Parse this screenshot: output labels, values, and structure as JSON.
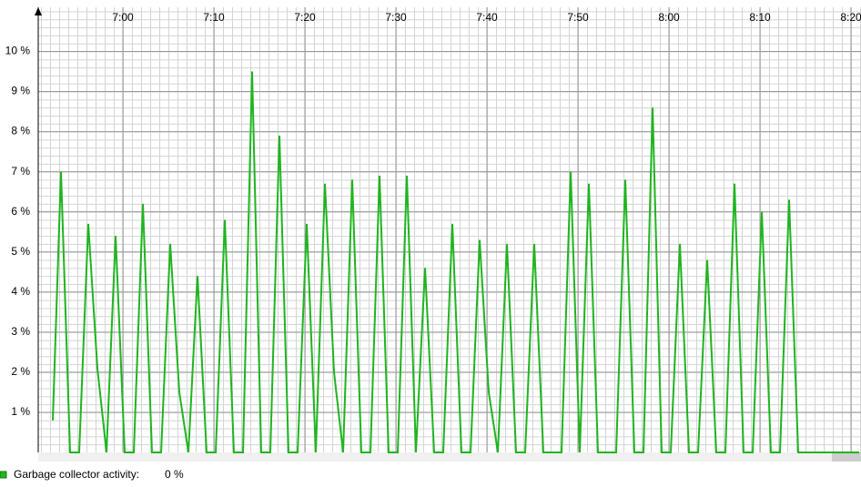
{
  "chart_data": {
    "type": "line",
    "xticks": [
      {
        "value": 420,
        "label": "7:00"
      },
      {
        "value": 430,
        "label": "7:10"
      },
      {
        "value": 440,
        "label": "7:20"
      },
      {
        "value": 450,
        "label": "7:30"
      },
      {
        "value": 460,
        "label": "7:40"
      },
      {
        "value": 470,
        "label": "7:50"
      },
      {
        "value": 480,
        "label": "8:00"
      },
      {
        "value": 490,
        "label": "8:10"
      },
      {
        "value": 500,
        "label": "8:20"
      }
    ],
    "xlim": [
      410.7,
      501.1
    ],
    "ylim": [
      0,
      11.1
    ],
    "yticks": [
      {
        "value": 1,
        "label": "1 %"
      },
      {
        "value": 2,
        "label": "2 %"
      },
      {
        "value": 3,
        "label": "3 %"
      },
      {
        "value": 4,
        "label": "4 %"
      },
      {
        "value": 5,
        "label": "5 %"
      },
      {
        "value": 6,
        "label": "6 %"
      },
      {
        "value": 7,
        "label": "7 %"
      },
      {
        "value": 8,
        "label": "8 %"
      },
      {
        "value": 9,
        "label": "9 %"
      },
      {
        "value": 10,
        "label": "10 %"
      }
    ],
    "grid": true,
    "legend": "bottom-left",
    "x": [
      412.3,
      413.2,
      414.2,
      415.2,
      416.2,
      417.2,
      418.2,
      419.2,
      420.2,
      421.2,
      422.2,
      423.2,
      424.2,
      425.2,
      426.2,
      427.2,
      428.2,
      429.2,
      430.2,
      431.2,
      432.2,
      433.2,
      434.2,
      435.2,
      436.2,
      437.2,
      438.2,
      439.2,
      440.2,
      441.2,
      442.2,
      443.2,
      444.2,
      445.2,
      446.2,
      447.2,
      448.2,
      449.2,
      450.2,
      451.2,
      452.2,
      453.2,
      454.2,
      455.2,
      456.2,
      457.2,
      458.2,
      459.2,
      460.2,
      461.2,
      462.2,
      463.2,
      464.2,
      465.2,
      466.2,
      467.2,
      468.2,
      469.2,
      470.2,
      471.2,
      472.2,
      473.2,
      474.2,
      475.2,
      476.2,
      477.2,
      478.2,
      479.2,
      480.2,
      481.2,
      482.2,
      483.2,
      484.2,
      485.2,
      486.2,
      487.2,
      488.2,
      489.2,
      490.2,
      491.2,
      492.2,
      493.2,
      494.2,
      500.9
    ],
    "series": [
      {
        "name": "Garbage collector activity:",
        "legend_value": "0 %",
        "color": "#1fb51f",
        "values": [
          0.8,
          7.0,
          0,
          0,
          5.7,
          2.1,
          0,
          5.4,
          0,
          0,
          6.2,
          0,
          0,
          5.2,
          1.5,
          0,
          4.4,
          0,
          0,
          5.8,
          0,
          0,
          9.5,
          0,
          0,
          7.9,
          0,
          0,
          5.7,
          0,
          6.7,
          2.0,
          0,
          6.8,
          0,
          0,
          6.9,
          0,
          0,
          6.9,
          0,
          4.6,
          0,
          0,
          5.7,
          0,
          0,
          5.3,
          1.5,
          0,
          5.2,
          0,
          0,
          5.2,
          0,
          0,
          0,
          7.0,
          0,
          6.7,
          0,
          0,
          0,
          6.8,
          0,
          0,
          8.6,
          0,
          0,
          5.2,
          0,
          0,
          4.8,
          0,
          0,
          6.7,
          0,
          0,
          6.0,
          0,
          0,
          6.3,
          0,
          0
        ]
      }
    ]
  }
}
